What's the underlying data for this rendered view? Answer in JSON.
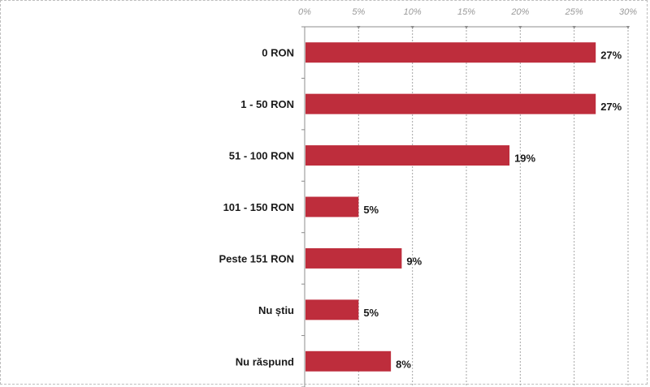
{
  "chart_data": {
    "type": "bar",
    "orientation": "horizontal",
    "categories": [
      "0 RON",
      "1 - 50 RON",
      "51 - 100 RON",
      "101 - 150 RON",
      "Peste 151 RON",
      "Nu știu",
      "Nu răspund"
    ],
    "values": [
      27,
      27,
      19,
      5,
      9,
      5,
      8
    ],
    "data_labels": [
      "27%",
      "27%",
      "19%",
      "5%",
      "9%",
      "5%",
      "8%"
    ],
    "value_axis": {
      "min": 0,
      "max": 30,
      "ticks": [
        0,
        5,
        10,
        15,
        20,
        25,
        30
      ],
      "tick_labels": [
        "0%",
        "5%",
        "10%",
        "15%",
        "20%",
        "25%",
        "30%"
      ],
      "position": "top"
    },
    "grid": true,
    "legend": "none",
    "title": "",
    "xlabel": "",
    "ylabel": "",
    "colors": {
      "bar": "#be2d3c",
      "grid": "#a6a6a6",
      "axis": "#8c8c8c"
    }
  }
}
